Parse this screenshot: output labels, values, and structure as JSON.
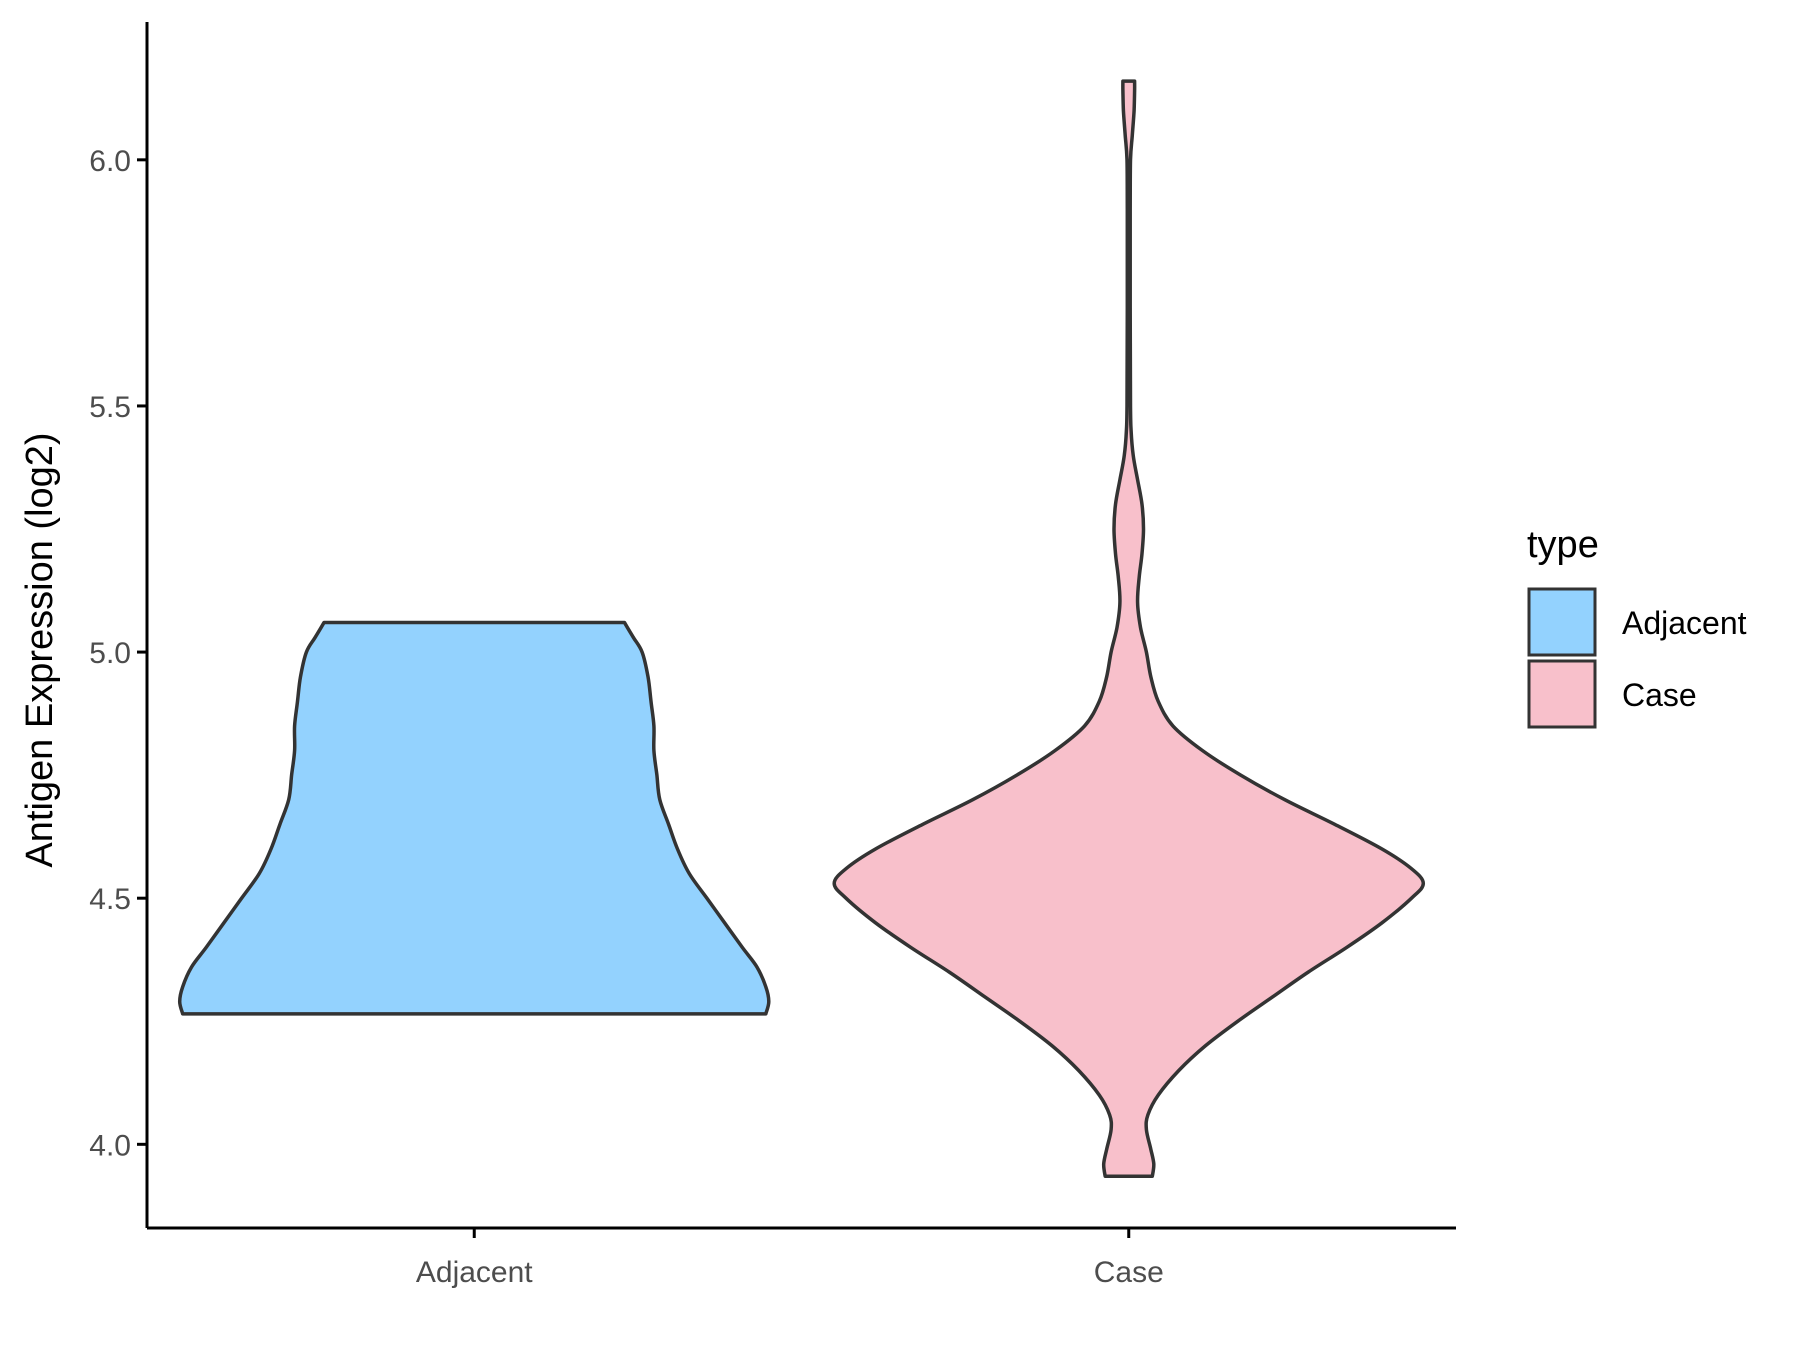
{
  "chart_data": {
    "type": "violin",
    "ylabel": "Antigen Expression (log2)",
    "xlabel": "",
    "categories": [
      "Adjacent",
      "Case"
    ],
    "y_ticks": [
      "4.0",
      "4.5",
      "5.0",
      "5.5",
      "6.0"
    ],
    "ylim": [
      3.83,
      6.28
    ],
    "grid": false,
    "legend": {
      "title": "type",
      "position": "right",
      "entries": [
        {
          "label": "Adjacent",
          "color": "#93d2fe"
        },
        {
          "label": "Case",
          "color": "#f8c0cb"
        }
      ]
    },
    "series": [
      {
        "category": "Adjacent",
        "color": "#93d2fe",
        "min": 4.265,
        "max": 5.06,
        "density_profile": [
          [
            4.265,
            0.99
          ],
          [
            4.29,
            1.0
          ],
          [
            4.32,
            0.99
          ],
          [
            4.36,
            0.96
          ],
          [
            4.4,
            0.91
          ],
          [
            4.45,
            0.85
          ],
          [
            4.5,
            0.79
          ],
          [
            4.55,
            0.73
          ],
          [
            4.6,
            0.69
          ],
          [
            4.65,
            0.66
          ],
          [
            4.7,
            0.63
          ],
          [
            4.75,
            0.62
          ],
          [
            4.8,
            0.61
          ],
          [
            4.85,
            0.61
          ],
          [
            4.9,
            0.6
          ],
          [
            4.95,
            0.59
          ],
          [
            5.0,
            0.57
          ],
          [
            5.03,
            0.54
          ],
          [
            5.06,
            0.51
          ]
        ]
      },
      {
        "category": "Case",
        "color": "#f8c0cb",
        "min": 3.935,
        "max": 6.16,
        "density_profile": [
          [
            3.935,
            0.08
          ],
          [
            3.96,
            0.085
          ],
          [
            3.99,
            0.075
          ],
          [
            4.03,
            0.06
          ],
          [
            4.06,
            0.065
          ],
          [
            4.1,
            0.1
          ],
          [
            4.15,
            0.17
          ],
          [
            4.2,
            0.26
          ],
          [
            4.25,
            0.37
          ],
          [
            4.3,
            0.49
          ],
          [
            4.35,
            0.61
          ],
          [
            4.4,
            0.74
          ],
          [
            4.45,
            0.86
          ],
          [
            4.5,
            0.96
          ],
          [
            4.53,
            1.0
          ],
          [
            4.56,
            0.96
          ],
          [
            4.6,
            0.86
          ],
          [
            4.65,
            0.7
          ],
          [
            4.7,
            0.53
          ],
          [
            4.75,
            0.38
          ],
          [
            4.8,
            0.25
          ],
          [
            4.85,
            0.15
          ],
          [
            4.9,
            0.1
          ],
          [
            4.95,
            0.075
          ],
          [
            5.0,
            0.06
          ],
          [
            5.05,
            0.04
          ],
          [
            5.1,
            0.03
          ],
          [
            5.15,
            0.035
          ],
          [
            5.2,
            0.045
          ],
          [
            5.25,
            0.05
          ],
          [
            5.3,
            0.045
          ],
          [
            5.35,
            0.03
          ],
          [
            5.4,
            0.015
          ],
          [
            5.45,
            0.008
          ],
          [
            5.5,
            0.006
          ],
          [
            5.7,
            0.005
          ],
          [
            5.9,
            0.005
          ],
          [
            6.0,
            0.006
          ],
          [
            6.05,
            0.012
          ],
          [
            6.1,
            0.018
          ],
          [
            6.14,
            0.02
          ],
          [
            6.16,
            0.02
          ]
        ]
      }
    ]
  }
}
